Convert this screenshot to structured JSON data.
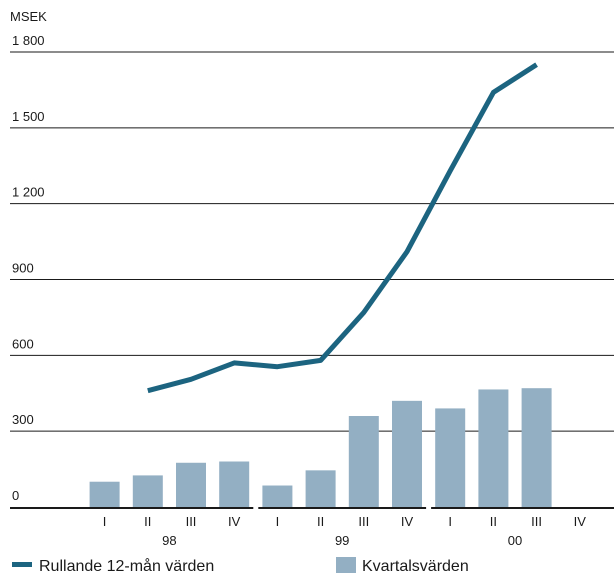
{
  "chart_data": {
    "type": "bar+line",
    "y_unit_label": "MSEK",
    "ylim": [
      0,
      1800
    ],
    "y_ticks": [
      {
        "value": 0,
        "label": "0"
      },
      {
        "value": 300,
        "label": "300"
      },
      {
        "value": 600,
        "label": "600"
      },
      {
        "value": 900,
        "label": "900"
      },
      {
        "value": 1200,
        "label": "1 200"
      },
      {
        "value": 1500,
        "label": "1 500"
      },
      {
        "value": 1800,
        "label": "1 800"
      }
    ],
    "grid": "horizontal",
    "categories": [
      "I",
      "II",
      "III",
      "IV",
      "I",
      "II",
      "III",
      "IV",
      "I",
      "II",
      "III",
      "IV"
    ],
    "year_groups": [
      {
        "label": "98",
        "start": 0,
        "end": 3
      },
      {
        "label": "99",
        "start": 4,
        "end": 7
      },
      {
        "label": "00",
        "start": 8,
        "end": 11
      }
    ],
    "series": [
      {
        "name": "Kvartalsvärden",
        "kind": "bar",
        "color": "#93afc3",
        "values": [
          100,
          125,
          175,
          180,
          85,
          145,
          360,
          420,
          390,
          465,
          470,
          null
        ]
      },
      {
        "name": "Rullande 12-mån värden",
        "kind": "line",
        "color": "#1c6480",
        "values": [
          null,
          460,
          505,
          570,
          555,
          580,
          770,
          1010,
          1330,
          1640,
          1750,
          null
        ]
      }
    ],
    "legend_position": "bottom"
  }
}
